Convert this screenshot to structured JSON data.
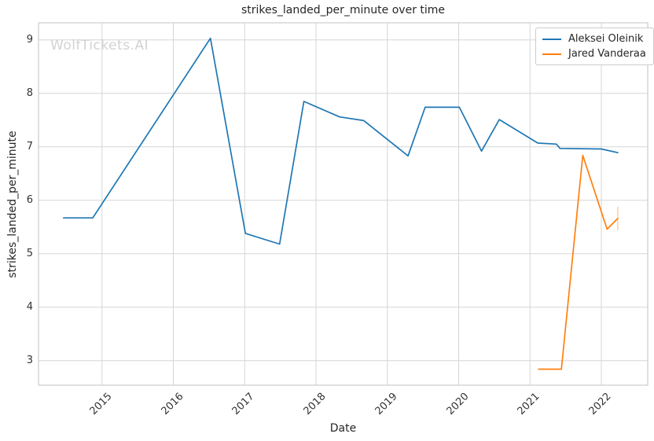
{
  "watermark": "WolfTickets.AI",
  "chart_data": {
    "type": "line",
    "title": "strikes_landed_per_minute over time",
    "xlabel": "Date",
    "ylabel": "strikes_landed_per_minute",
    "grid": true,
    "legend_position": "upper right",
    "x_unit": "decimal_year",
    "x_ticks": [
      "2015",
      "2016",
      "2017",
      "2018",
      "2019",
      "2020",
      "2021",
      "2022"
    ],
    "x_tick_values": [
      2015,
      2016,
      2017,
      2018,
      2019,
      2020,
      2021,
      2022
    ],
    "y_ticks": [
      "3",
      "4",
      "5",
      "6",
      "7",
      "8",
      "9"
    ],
    "y_tick_values": [
      3,
      4,
      5,
      6,
      7,
      8,
      9
    ],
    "x_range": [
      2014.11,
      2022.65
    ],
    "y_range": [
      2.54,
      9.32
    ],
    "grid_color": "#d6d6d6",
    "spine_color": "#cccccc",
    "series": [
      {
        "name": "Aleksei Oleinik",
        "color": "#1f77b4",
        "points": [
          [
            2014.46,
            5.67
          ],
          [
            2014.87,
            5.67
          ],
          [
            2016.52,
            9.03
          ],
          [
            2017.01,
            5.38
          ],
          [
            2017.49,
            5.18
          ],
          [
            2017.83,
            7.85
          ],
          [
            2018.33,
            7.56
          ],
          [
            2018.67,
            7.49
          ],
          [
            2019.29,
            6.83
          ],
          [
            2019.53,
            7.74
          ],
          [
            2020.01,
            7.74
          ],
          [
            2020.32,
            6.92
          ],
          [
            2020.57,
            7.51
          ],
          [
            2021.11,
            7.07
          ],
          [
            2021.37,
            7.05
          ],
          [
            2021.42,
            6.97
          ],
          [
            2022.0,
            6.96
          ],
          [
            2022.23,
            6.89
          ]
        ]
      },
      {
        "name": "Jared Vanderaa",
        "color": "#ff7f0e",
        "points": [
          [
            2021.12,
            2.84
          ],
          [
            2021.44,
            2.84
          ],
          [
            2021.74,
            6.84
          ],
          [
            2022.08,
            5.46
          ],
          [
            2022.23,
            5.66
          ]
        ],
        "faint_end_bar": {
          "x": 2022.23,
          "low": 5.44,
          "high": 5.88,
          "opacity": 0.35
        }
      }
    ]
  }
}
